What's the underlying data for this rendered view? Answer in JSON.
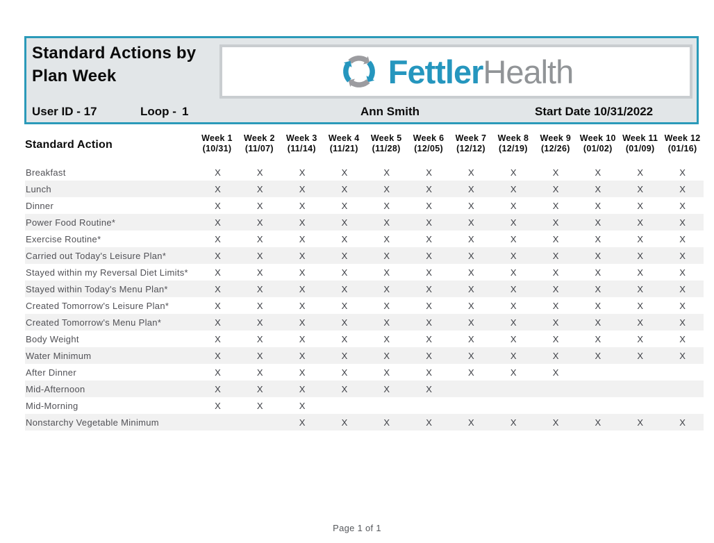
{
  "header": {
    "title": "Standard Actions by Plan Week",
    "user_id": "User ID - 17",
    "loop_label": "Loop -",
    "loop_value": "1",
    "patient_name": "Ann Smith",
    "start_date": "Start Date 10/31/2022",
    "brand": {
      "first": "Fettler",
      "second": "Health"
    }
  },
  "table": {
    "action_header": "Standard Action",
    "mark_glyph": "X",
    "weeks": [
      {
        "label": "Week 1",
        "date": "(10/31)"
      },
      {
        "label": "Week 2",
        "date": "(11/07)"
      },
      {
        "label": "Week 3",
        "date": "(11/14)"
      },
      {
        "label": "Week 4",
        "date": "(11/21)"
      },
      {
        "label": "Week 5",
        "date": "(11/28)"
      },
      {
        "label": "Week 6",
        "date": "(12/05)"
      },
      {
        "label": "Week 7",
        "date": "(12/12)"
      },
      {
        "label": "Week 8",
        "date": "(12/19)"
      },
      {
        "label": "Week 9",
        "date": "(12/26)"
      },
      {
        "label": "Week 10",
        "date": "(01/02)"
      },
      {
        "label": "Week 11",
        "date": "(01/09)"
      },
      {
        "label": "Week 12",
        "date": "(01/16)"
      }
    ],
    "rows": [
      {
        "label": "Breakfast",
        "marks": [
          1,
          1,
          1,
          1,
          1,
          1,
          1,
          1,
          1,
          1,
          1,
          1
        ]
      },
      {
        "label": "Lunch",
        "marks": [
          1,
          1,
          1,
          1,
          1,
          1,
          1,
          1,
          1,
          1,
          1,
          1
        ]
      },
      {
        "label": "Dinner",
        "marks": [
          1,
          1,
          1,
          1,
          1,
          1,
          1,
          1,
          1,
          1,
          1,
          1
        ]
      },
      {
        "label": "Power Food Routine*",
        "marks": [
          1,
          1,
          1,
          1,
          1,
          1,
          1,
          1,
          1,
          1,
          1,
          1
        ]
      },
      {
        "label": "Exercise Routine*",
        "marks": [
          1,
          1,
          1,
          1,
          1,
          1,
          1,
          1,
          1,
          1,
          1,
          1
        ]
      },
      {
        "label": "Carried out Today's Leisure Plan*",
        "marks": [
          1,
          1,
          1,
          1,
          1,
          1,
          1,
          1,
          1,
          1,
          1,
          1
        ]
      },
      {
        "label": "Stayed within my Reversal Diet Limits*",
        "marks": [
          1,
          1,
          1,
          1,
          1,
          1,
          1,
          1,
          1,
          1,
          1,
          1
        ]
      },
      {
        "label": "Stayed within Today's Menu Plan*",
        "marks": [
          1,
          1,
          1,
          1,
          1,
          1,
          1,
          1,
          1,
          1,
          1,
          1
        ]
      },
      {
        "label": "Created Tomorrow's Leisure Plan*",
        "marks": [
          1,
          1,
          1,
          1,
          1,
          1,
          1,
          1,
          1,
          1,
          1,
          1
        ]
      },
      {
        "label": "Created Tomorrow's Menu Plan*",
        "marks": [
          1,
          1,
          1,
          1,
          1,
          1,
          1,
          1,
          1,
          1,
          1,
          1
        ]
      },
      {
        "label": "Body Weight",
        "marks": [
          1,
          1,
          1,
          1,
          1,
          1,
          1,
          1,
          1,
          1,
          1,
          1
        ]
      },
      {
        "label": "Water Minimum",
        "marks": [
          1,
          1,
          1,
          1,
          1,
          1,
          1,
          1,
          1,
          1,
          1,
          1
        ]
      },
      {
        "label": "After Dinner",
        "marks": [
          1,
          1,
          1,
          1,
          1,
          1,
          1,
          1,
          1,
          0,
          0,
          0
        ]
      },
      {
        "label": "Mid-Afternoon",
        "marks": [
          1,
          1,
          1,
          1,
          1,
          1,
          0,
          0,
          0,
          0,
          0,
          0
        ]
      },
      {
        "label": "Mid-Morning",
        "marks": [
          1,
          1,
          1,
          0,
          0,
          0,
          0,
          0,
          0,
          0,
          0,
          0
        ]
      },
      {
        "label": "Nonstarchy Vegetable Minimum",
        "marks": [
          0,
          0,
          1,
          1,
          1,
          1,
          1,
          1,
          1,
          1,
          1,
          1
        ]
      }
    ]
  },
  "footer": {
    "page_text": "Page 1 of 1"
  },
  "colors": {
    "accent_teal": "#2B9AB9",
    "header_background": "#E2E6E8",
    "logo_box_border": "#C9CDD0",
    "brand_teal": "#2596BE",
    "brand_gray": "#919497",
    "logo_arrow_gray": "#9C9CA0",
    "row_stripe": "#F1F1F1",
    "mark_color": "#3F4147",
    "label_color": "#515156"
  }
}
